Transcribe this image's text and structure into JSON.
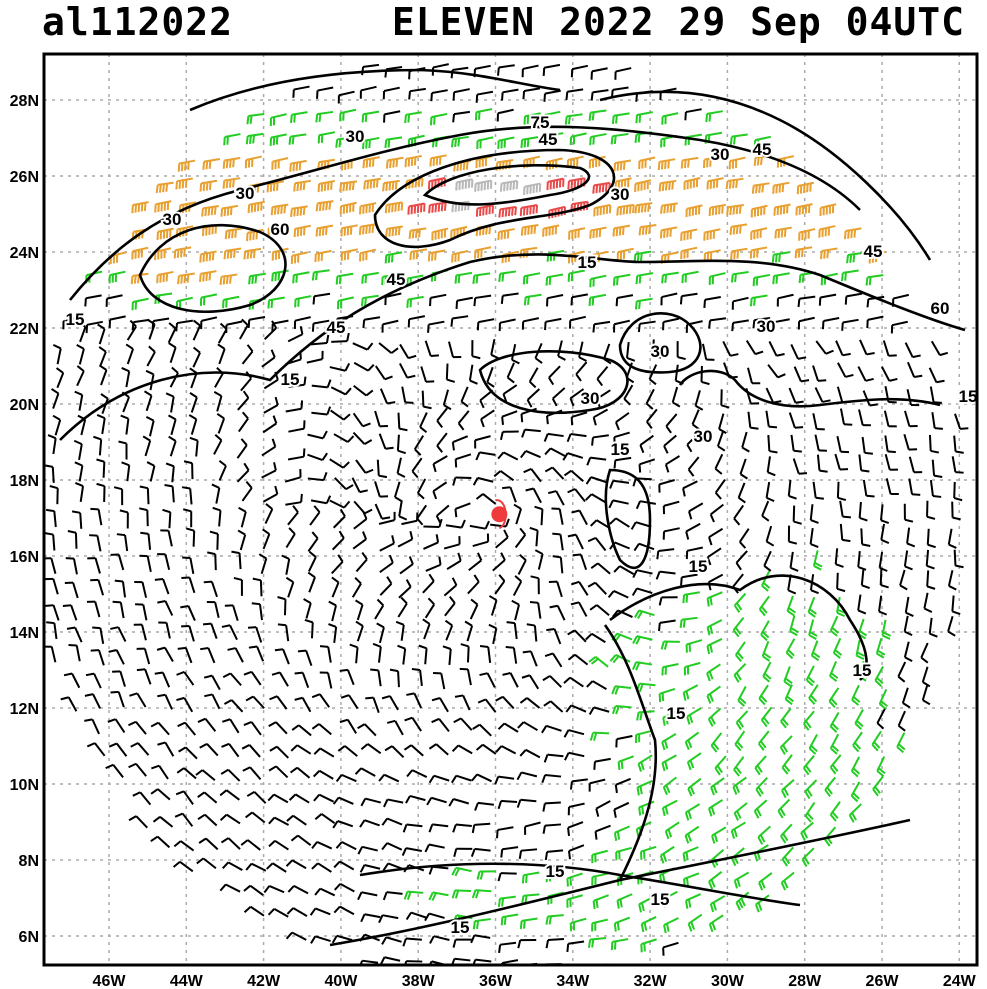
{
  "header": {
    "storm_id": "al112022",
    "title": "ELEVEN 2022 29 Sep 04UTC"
  },
  "axes": {
    "lon_labels": [
      "46W",
      "44W",
      "42W",
      "40W",
      "38W",
      "36W",
      "34W",
      "32W",
      "30W",
      "28W",
      "26W",
      "24W"
    ],
    "lat_labels": [
      "28N",
      "26N",
      "24N",
      "22N",
      "20N",
      "18N",
      "16N",
      "14N",
      "12N",
      "10N",
      "8N",
      "6N"
    ],
    "grid": true
  },
  "contour_labels": [
    "30",
    "45",
    "75",
    "30",
    "45",
    "60",
    "30",
    "30",
    "45",
    "30",
    "45",
    "60",
    "45",
    "30",
    "15",
    "15",
    "30",
    "30",
    "30",
    "15",
    "15",
    "15",
    "15",
    "15",
    "15",
    "15",
    "15",
    "15"
  ],
  "colors": {
    "calm_barb": "#000000",
    "low_barb": "#22cc22",
    "mid_barb": "#e8a030",
    "high_barb": "#e84a4a",
    "very_high_barb": "#b8b8b8",
    "center_marker": "#ee3b3b",
    "grid": "#aaaaaa"
  },
  "center_marker": {
    "lon": -35.9,
    "lat": 17.1,
    "icon": "storm-center-dot"
  }
}
